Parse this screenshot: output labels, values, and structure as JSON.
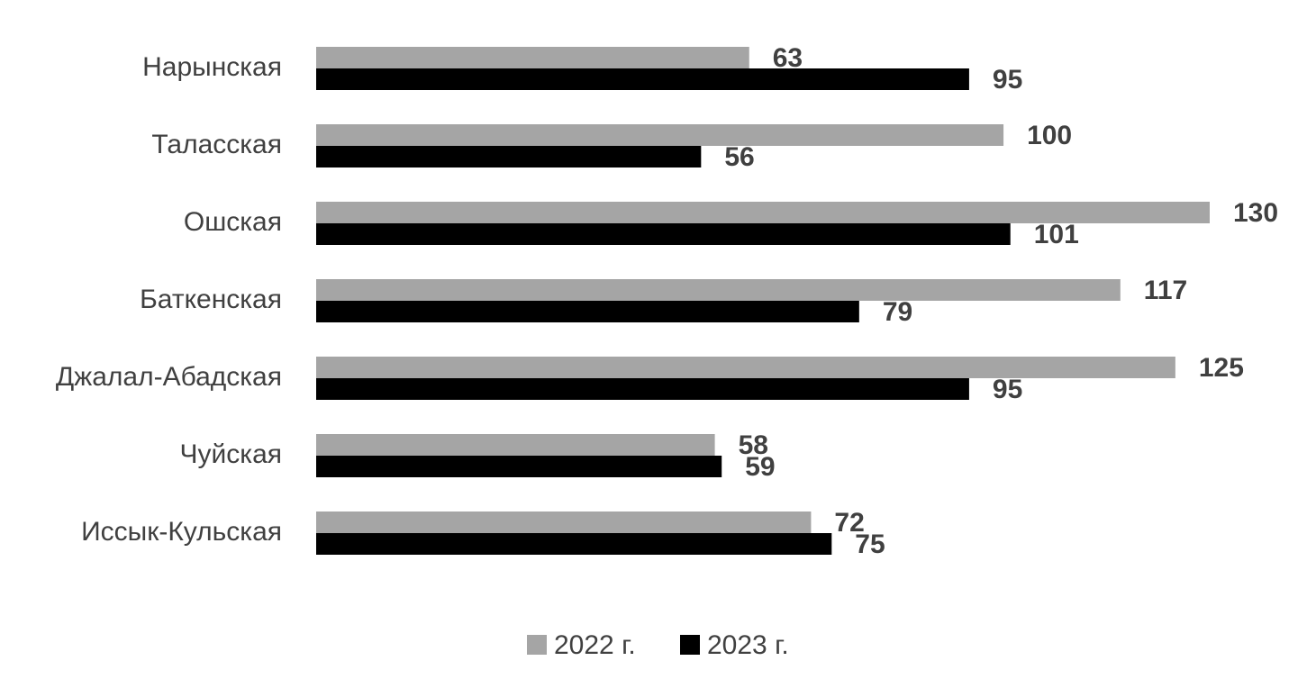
{
  "chart_data": {
    "type": "bar",
    "orientation": "horizontal",
    "categories": [
      "Нарынская",
      "Таласская",
      "Ошская",
      "Баткенская",
      "Джалал-Абадская",
      "Чуйская",
      "Иссык-Кульская"
    ],
    "series": [
      {
        "name": "2022 г.",
        "color": "#a5a5a5",
        "values": [
          63,
          100,
          130,
          117,
          125,
          58,
          72
        ]
      },
      {
        "name": "2023 г.",
        "color": "#000000",
        "values": [
          95,
          56,
          101,
          79,
          95,
          59,
          75
        ]
      }
    ],
    "xlim": [
      0,
      130
    ],
    "legend": "bottom"
  }
}
